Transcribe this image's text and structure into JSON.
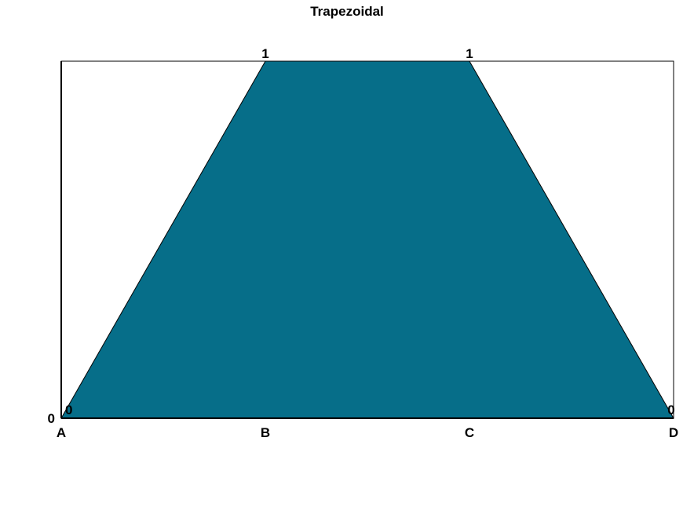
{
  "chart_data": {
    "type": "area",
    "title": "Trapezoidal",
    "xlabel": "",
    "ylabel": "",
    "categories": [
      "A",
      "B",
      "C",
      "D"
    ],
    "values": [
      0,
      1,
      1,
      0
    ],
    "y_tick_labels": [
      "0"
    ],
    "data_labels": [
      "0",
      "1",
      "1",
      "0"
    ],
    "ylim": [
      0,
      1
    ],
    "grid": false,
    "legend": "none",
    "fill_color": "#066E89",
    "line_color": "#000000"
  }
}
